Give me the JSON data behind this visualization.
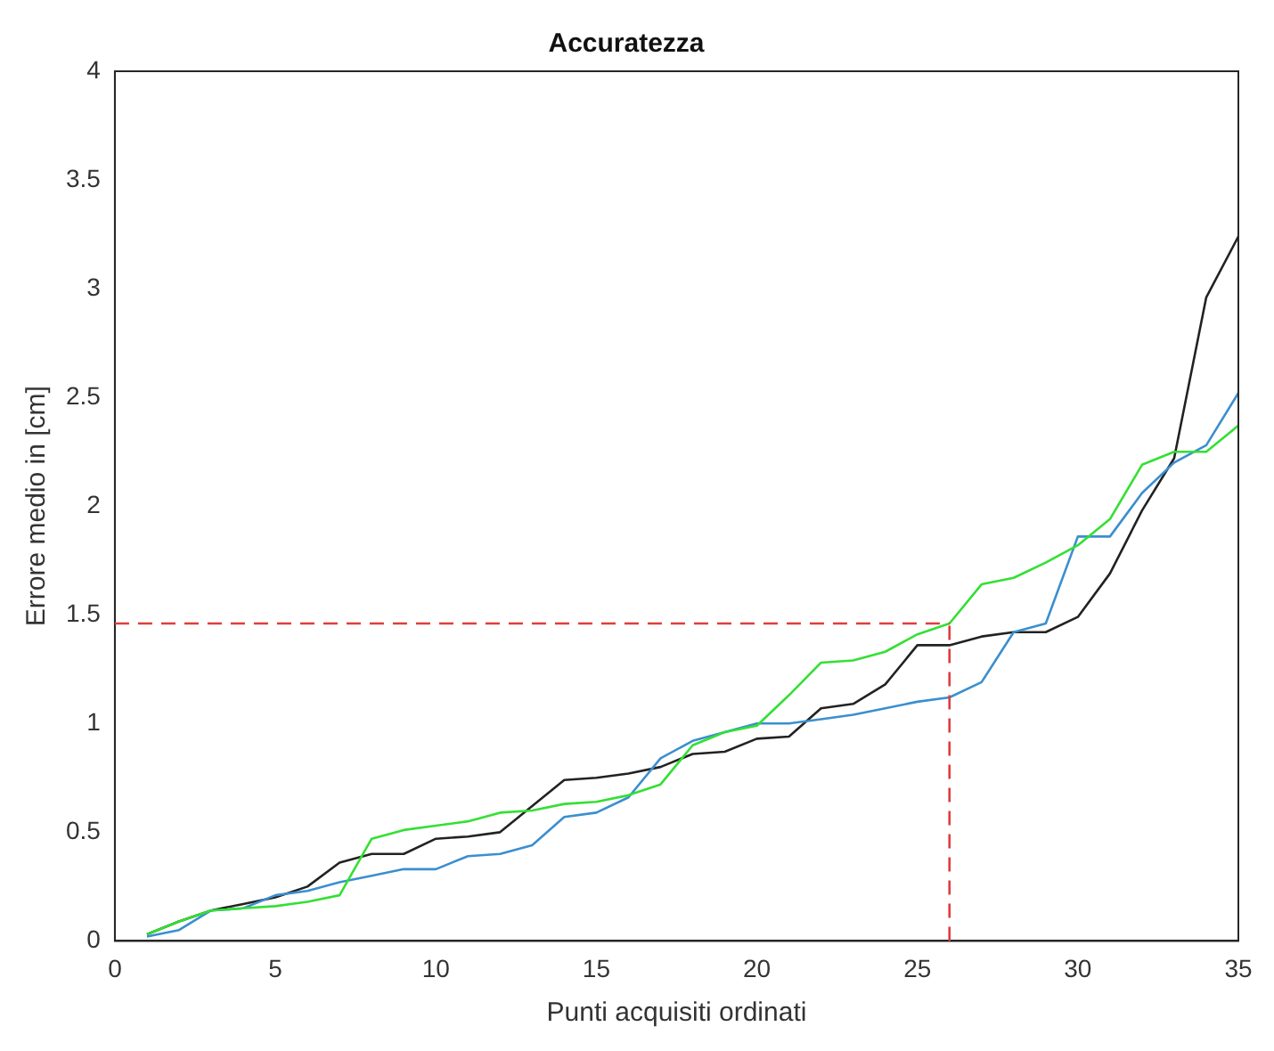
{
  "chart_data": {
    "type": "line",
    "title": "Accuratezza",
    "xlabel": "Punti acquisiti ordinati",
    "ylabel": "Errore medio in [cm]",
    "x": [
      1,
      2,
      3,
      4,
      5,
      6,
      7,
      8,
      9,
      10,
      11,
      12,
      13,
      14,
      15,
      16,
      17,
      18,
      19,
      20,
      21,
      22,
      23,
      24,
      25,
      26,
      27,
      28,
      29,
      30,
      31,
      32,
      33,
      34,
      35
    ],
    "series": [
      {
        "color": "#222222",
        "values": [
          0.03,
          0.09,
          0.14,
          0.17,
          0.2,
          0.25,
          0.36,
          0.4,
          0.4,
          0.47,
          0.48,
          0.5,
          0.62,
          0.74,
          0.75,
          0.77,
          0.8,
          0.86,
          0.87,
          0.93,
          0.94,
          1.07,
          1.09,
          1.18,
          1.36,
          1.36,
          1.4,
          1.42,
          1.42,
          1.49,
          1.69,
          1.98,
          2.22,
          2.96,
          3.24
        ]
      },
      {
        "color": "#3a8fcf",
        "values": [
          0.02,
          0.05,
          0.14,
          0.15,
          0.21,
          0.23,
          0.27,
          0.3,
          0.33,
          0.33,
          0.39,
          0.4,
          0.44,
          0.57,
          0.59,
          0.66,
          0.84,
          0.92,
          0.96,
          1.0,
          1.0,
          1.02,
          1.04,
          1.07,
          1.1,
          1.12,
          1.19,
          1.42,
          1.46,
          1.86,
          1.86,
          2.06,
          2.2,
          2.28,
          2.52
        ]
      },
      {
        "color": "#33e033",
        "values": [
          0.03,
          0.09,
          0.14,
          0.15,
          0.16,
          0.18,
          0.21,
          0.47,
          0.51,
          0.53,
          0.55,
          0.59,
          0.6,
          0.63,
          0.64,
          0.67,
          0.72,
          0.9,
          0.96,
          0.99,
          1.13,
          1.28,
          1.29,
          1.33,
          1.41,
          1.46,
          1.64,
          1.67,
          1.74,
          1.82,
          1.94,
          2.19,
          2.25,
          2.25,
          2.37
        ]
      }
    ],
    "ref_lines": [
      {
        "axis": "y",
        "value": 1.46,
        "color": "#e03c3c",
        "line_style": "dashed"
      },
      {
        "axis": "x",
        "value": 26,
        "color": "#e03c3c",
        "line_style": "dashed"
      }
    ],
    "xlim": [
      0,
      35
    ],
    "xticks": [
      0,
      5,
      10,
      15,
      20,
      25,
      30,
      35
    ],
    "ylim": [
      0,
      4
    ],
    "yticks": [
      0,
      0.5,
      1,
      1.5,
      2,
      2.5,
      3,
      3.5,
      4
    ],
    "grid": false,
    "legend": false,
    "marker": "none",
    "line_style": "solid"
  }
}
